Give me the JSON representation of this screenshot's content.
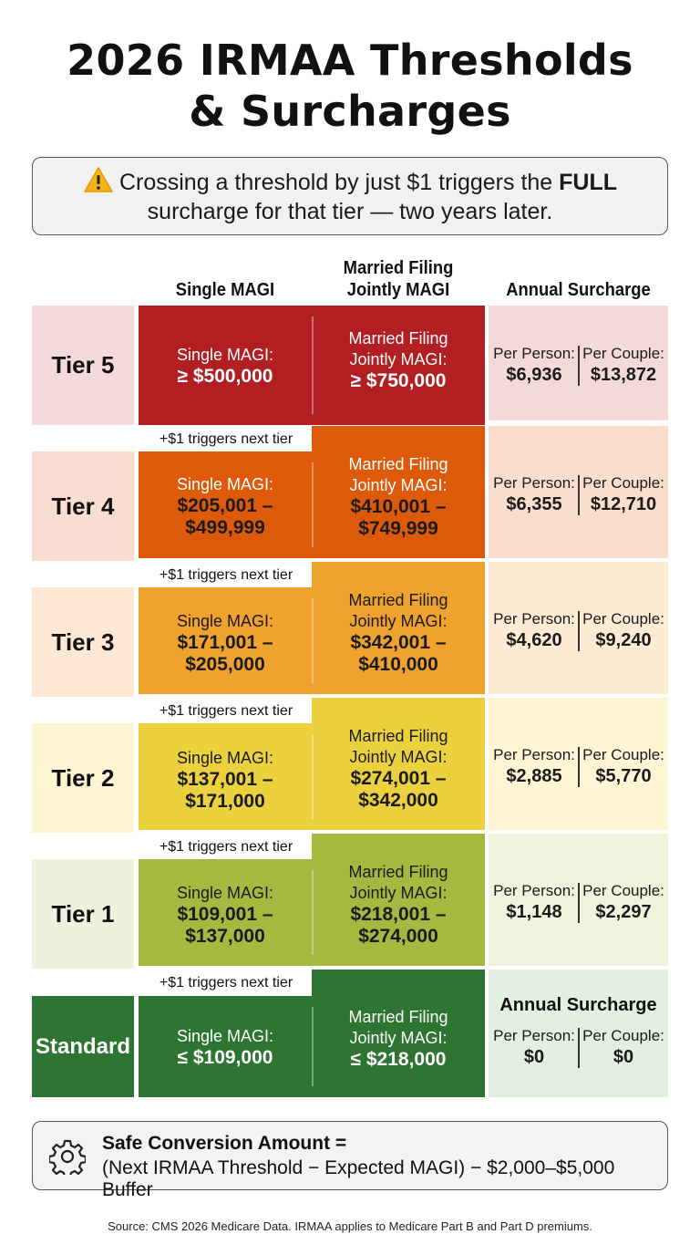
{
  "title_line1": "2026 IRMAA Thresholds",
  "title_line2": "& Surcharges",
  "alert": {
    "icon": "warning-icon",
    "text_before": "Crossing a threshold by just $1 triggers the ",
    "text_bold": "FULL",
    "text_after": " surcharge for that tier — two years later."
  },
  "columns": {
    "single": "Single MAGI",
    "married_line1": "Married Filing",
    "married_line2": "Jointly MAGI",
    "surcharge": "Annual Surcharge"
  },
  "labels": {
    "single": "Single MAGI:",
    "married_line1": "Married Filing",
    "married_line2": "Jointly MAGI:",
    "per_person": "Per Person:",
    "per_couple": "Per Couple:",
    "trigger": "+$1 triggers next tier"
  },
  "tiers": [
    {
      "name": "Tier 5",
      "single_line1": "≥ $500,000",
      "single_line2": "",
      "married_line1": "≥ $750,000",
      "married_line2": "",
      "per_person": "$6,936",
      "per_couple": "$13,872"
    },
    {
      "name": "Tier 4",
      "single_line1": "$205,001 –",
      "single_line2": "$499,999",
      "married_line1": "$410,001 –",
      "married_line2": "$749,999",
      "per_person": "$6,355",
      "per_couple": "$12,710"
    },
    {
      "name": "Tier 3",
      "single_line1": "$171,001 –",
      "single_line2": "$205,000",
      "married_line1": "$342,001 –",
      "married_line2": "$410,000",
      "per_person": "$4,620",
      "per_couple": "$9,240"
    },
    {
      "name": "Tier 2",
      "single_line1": "$137,001 –",
      "single_line2": "$171,000",
      "married_line1": "$274,001 –",
      "married_line2": "$342,000",
      "per_person": "$2,885",
      "per_couple": "$5,770"
    },
    {
      "name": "Tier 1",
      "single_line1": "$109,001 –",
      "single_line2": "$137,000",
      "married_line1": "$218,001 –",
      "married_line2": "$274,000",
      "per_person": "$1,148",
      "per_couple": "$2,297"
    },
    {
      "name": "Standard",
      "single_line1": "≤ $109,000",
      "single_line2": "",
      "married_line1": "≤ $218,000",
      "married_line2": "",
      "per_person": "$0",
      "per_couple": "$0",
      "surcharge_heading": "Annual Surcharge"
    }
  ],
  "colors": {
    "tier5": "#b11f22",
    "tier4": "#dd5a0a",
    "tier3": "#f0a22e",
    "tier2": "#ecd13f",
    "tier1": "#a6b83f",
    "standard": "#2e7533"
  },
  "formula": {
    "icon": "gear-icon",
    "title": "Safe Conversion Amount =",
    "body": "(Next IRMAA Threshold − Expected MAGI) − $2,000–$5,000 Buffer"
  },
  "source": "Source: CMS 2026 Medicare Data. IRMAA applies to Medicare Part B and Part D premiums."
}
